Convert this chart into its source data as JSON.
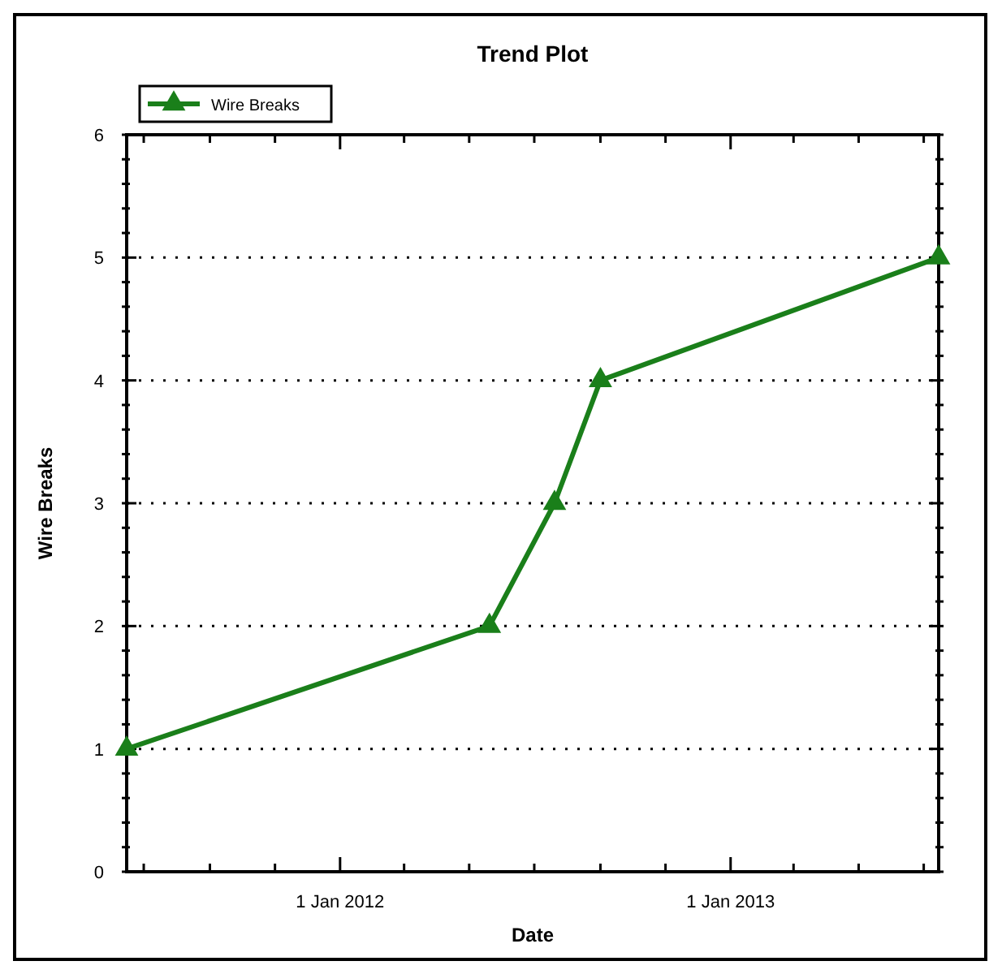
{
  "chart_data": {
    "type": "line",
    "title": "Trend Plot",
    "xlabel": "Date",
    "ylabel": "Wire Breaks",
    "x": [
      "2011-06-15",
      "2012-05-20",
      "2012-07-20",
      "2012-09-01",
      "2013-07-15"
    ],
    "series": [
      {
        "name": "Wire Breaks",
        "color": "#1a7f1a",
        "values": [
          1,
          2,
          3,
          4,
          5
        ]
      }
    ],
    "xlim": [
      "2011-06-15",
      "2013-07-15"
    ],
    "xticks": [
      {
        "value": "2011-07-01",
        "label": null
      },
      {
        "value": "2011-09-01",
        "label": null
      },
      {
        "value": "2011-11-01",
        "label": null
      },
      {
        "value": "2012-01-01",
        "label": "1 Jan 2012"
      },
      {
        "value": "2012-03-01",
        "label": null
      },
      {
        "value": "2012-05-01",
        "label": null
      },
      {
        "value": "2012-07-01",
        "label": null
      },
      {
        "value": "2012-09-01",
        "label": null
      },
      {
        "value": "2012-11-01",
        "label": null
      },
      {
        "value": "2013-01-01",
        "label": "1 Jan 2013"
      },
      {
        "value": "2013-03-01",
        "label": null
      },
      {
        "value": "2013-05-01",
        "label": null
      },
      {
        "value": "2013-07-01",
        "label": null
      }
    ],
    "ylim": [
      0,
      6
    ],
    "yticks": [
      0,
      {
        "value": 0.2,
        "label": null
      },
      {
        "value": 0.4,
        "label": null
      },
      {
        "value": 0.6,
        "label": null
      },
      {
        "value": 0.8,
        "label": null
      },
      1,
      {
        "value": 1.2,
        "label": null
      },
      {
        "value": 1.4,
        "label": null
      },
      {
        "value": 1.6,
        "label": null
      },
      {
        "value": 1.8,
        "label": null
      },
      2,
      {
        "value": 2.2,
        "label": null
      },
      {
        "value": 2.4,
        "label": null
      },
      {
        "value": 2.6,
        "label": null
      },
      {
        "value": 2.8,
        "label": null
      },
      3,
      {
        "value": 3.2,
        "label": null
      },
      {
        "value": 3.4,
        "label": null
      },
      {
        "value": 3.6,
        "label": null
      },
      {
        "value": 3.8,
        "label": null
      },
      4,
      {
        "value": 4.2,
        "label": null
      },
      {
        "value": 4.4,
        "label": null
      },
      {
        "value": 4.6,
        "label": null
      },
      {
        "value": 4.8,
        "label": null
      },
      5,
      {
        "value": 5.2,
        "label": null
      },
      {
        "value": 5.4,
        "label": null
      },
      {
        "value": 5.6,
        "label": null
      },
      {
        "value": 5.8,
        "label": null
      },
      6
    ],
    "grid": "y",
    "legend": "top left",
    "marker": "triangle",
    "line_style": "solid"
  }
}
